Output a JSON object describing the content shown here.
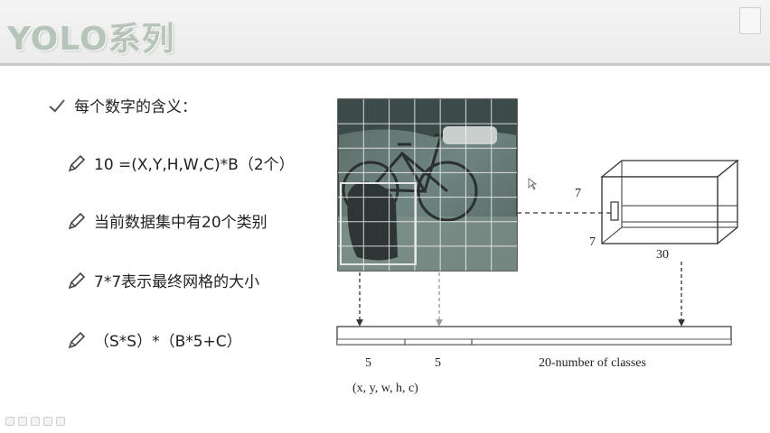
{
  "slide": {
    "title": "YOLO系列",
    "watermark": ""
  },
  "bullets": [
    {
      "icon": "check-icon",
      "text": "每个数字的含义："
    },
    {
      "icon": "pencil-icon",
      "text": "10 =(X,Y,H,W,C)*B（2个）"
    },
    {
      "icon": "pencil-icon",
      "text": "当前数据集中有20个类别"
    },
    {
      "icon": "pencil-icon",
      "text": "7*7表示最终网格的大小"
    },
    {
      "icon": "pencil-icon",
      "text": "（S*S）*（B*5+C）"
    }
  ],
  "diagram": {
    "grid_size": 7,
    "tensor_height": "7",
    "tensor_width": "7",
    "tensor_depth": "30",
    "vector_segments": [
      {
        "label": "5",
        "sub_label": "(x, y, w, h, c)"
      },
      {
        "label": "5",
        "sub_label": ""
      },
      {
        "label": "20-number of classes",
        "sub_label": ""
      }
    ]
  },
  "colors": {
    "title": "#b7c4b9",
    "grid_line": "#ffffff",
    "photo_dark": "#3c4a4a"
  }
}
